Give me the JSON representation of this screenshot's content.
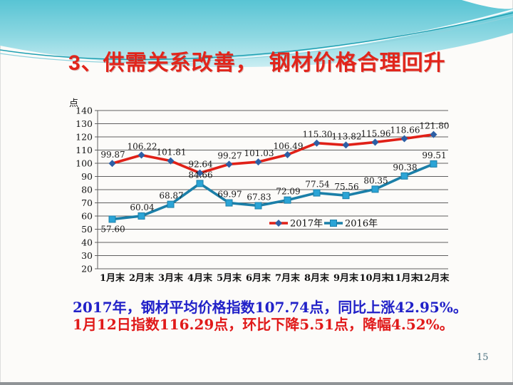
{
  "slide": {
    "title": "3、供需关系改善，　钢材价格合理回升",
    "title_color": "#e1251b",
    "page_number": "15",
    "page_number_color": "#4a7080",
    "notes": [
      {
        "text": "2017年，钢材平均价格指数107.74点，同比上涨42.95%。",
        "color": "#2121c8"
      },
      {
        "text": "1月12日指数116.29点，环比下降5.51点，降幅4.52%。",
        "color": "#e01a1a"
      }
    ]
  },
  "chart_data": {
    "type": "line",
    "title": "",
    "ylabel": "点",
    "xlabel": "",
    "categories": [
      "1月末",
      "2月末",
      "3月末",
      "4月末",
      "5月末",
      "6月末",
      "7月末",
      "8月末",
      "9月末",
      "10月末",
      "11月末",
      "12月末"
    ],
    "series": [
      {
        "name": "2017年",
        "line_color": "#e02017",
        "marker": "diamond",
        "marker_color": "#2d5fa5",
        "values": [
          99.87,
          106.22,
          101.81,
          92.64,
          99.27,
          101.03,
          106.49,
          115.3,
          113.82,
          115.96,
          118.66,
          121.8
        ],
        "labels": [
          "99.87",
          "106.22",
          "101.81",
          "92.64",
          "99.27",
          "101.03",
          "106.49",
          "115.30",
          "113.82",
          "115.96",
          "118.66",
          "121.80"
        ],
        "labels_below_indices": []
      },
      {
        "name": "2016年",
        "line_color": "#1b7fa8",
        "marker": "square",
        "marker_color": "#2ba4d6",
        "values": [
          57.6,
          60.04,
          68.87,
          84.66,
          69.97,
          67.83,
          72.09,
          77.54,
          75.56,
          80.35,
          90.38,
          99.51
        ],
        "labels": [
          "57.60",
          "60.04",
          "68.87",
          "84.66",
          "69.97",
          "67.83",
          "72.09",
          "77.54",
          "75.56",
          "80.35",
          "90.38",
          "99.51"
        ],
        "labels_below_indices": [
          0
        ]
      }
    ],
    "ylim": [
      20,
      140
    ],
    "ytick_step": 10,
    "grid": true,
    "gridline_color": "#5f5f5f",
    "legend_position": "inside-bottom",
    "label_color": "#1a1a1a"
  }
}
